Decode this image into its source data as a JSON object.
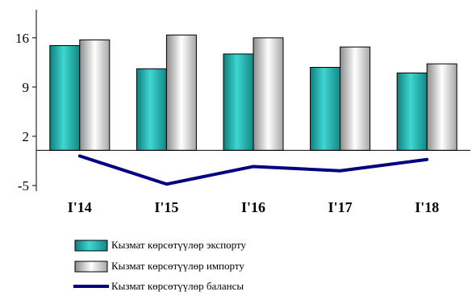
{
  "chart_data": {
    "type": "bar",
    "title": "",
    "xlabel": "",
    "ylabel": "",
    "categories": [
      "I'14",
      "I'15",
      "I'16",
      "I'17",
      "I'18"
    ],
    "series": [
      {
        "name": "Кызмат көрсөтүүлөр экспорту",
        "kind": "bar",
        "values": [
          14.9,
          11.6,
          13.7,
          11.8,
          11.0
        ],
        "color": "#2ec4c0"
      },
      {
        "name": "Кызмат көрсөтүүлөр импорту",
        "kind": "bar",
        "values": [
          15.7,
          16.4,
          16.0,
          14.7,
          12.3
        ],
        "color": "#d9d9d9"
      },
      {
        "name": "Кызмат көрсөтүүлөр балансы",
        "kind": "line",
        "values": [
          -0.8,
          -4.8,
          -2.3,
          -2.9,
          -1.3
        ],
        "color": "#000080"
      }
    ],
    "y_ticks": [
      -5,
      2,
      9,
      16
    ],
    "ylim": [
      -5.8,
      20
    ],
    "grid": false,
    "legend_position": "bottom-left"
  }
}
